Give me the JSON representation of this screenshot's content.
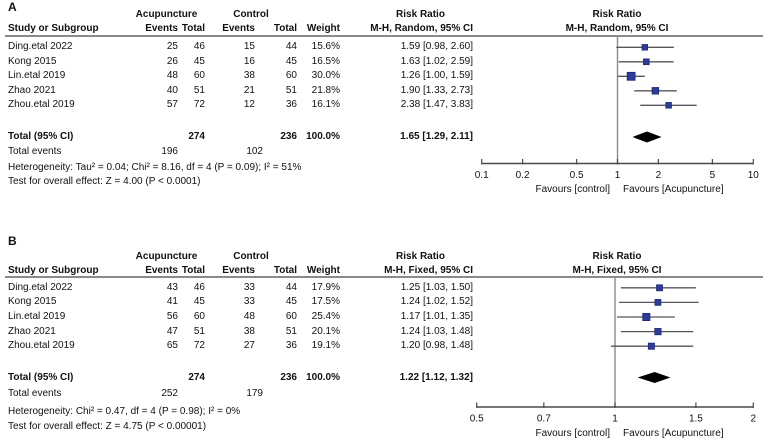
{
  "chart_data": [
    {
      "type": "scatter",
      "subtype": "forest-plot",
      "panel_label": "A",
      "title": "Risk Ratio",
      "method": "M-H, Random, 95% CI",
      "group_labels": {
        "treatment": "Acupuncture",
        "control": "Control"
      },
      "table_columns": [
        "Study or Subgroup",
        "Events",
        "Total",
        "Events",
        "Total",
        "Weight"
      ],
      "studies": [
        {
          "name": "Ding.etal 2022",
          "events_treatment": 25,
          "total_treatment": 46,
          "events_control": 15,
          "total_control": 44,
          "weight_pct": 15.6,
          "weight_label": "15.6%",
          "rr": 1.59,
          "ci_low": 0.98,
          "ci_high": 2.6,
          "rr_label": "1.59 [0.98, 2.60]"
        },
        {
          "name": "Kong 2015",
          "events_treatment": 26,
          "total_treatment": 45,
          "events_control": 16,
          "total_control": 45,
          "weight_pct": 16.5,
          "weight_label": "16.5%",
          "rr": 1.63,
          "ci_low": 1.02,
          "ci_high": 2.59,
          "rr_label": "1.63 [1.02, 2.59]"
        },
        {
          "name": "Lin.etal 2019",
          "events_treatment": 48,
          "total_treatment": 60,
          "events_control": 38,
          "total_control": 60,
          "weight_pct": 30.0,
          "weight_label": "30.0%",
          "rr": 1.26,
          "ci_low": 1.0,
          "ci_high": 1.59,
          "rr_label": "1.26 [1.00, 1.59]"
        },
        {
          "name": "Zhao 2021",
          "events_treatment": 40,
          "total_treatment": 51,
          "events_control": 21,
          "total_control": 51,
          "weight_pct": 21.8,
          "weight_label": "21.8%",
          "rr": 1.9,
          "ci_low": 1.33,
          "ci_high": 2.73,
          "rr_label": "1.90 [1.33, 2.73]"
        },
        {
          "name": "Zhou.etal 2019",
          "events_treatment": 57,
          "total_treatment": 72,
          "events_control": 12,
          "total_control": 36,
          "weight_pct": 16.1,
          "weight_label": "16.1%",
          "rr": 2.38,
          "ci_low": 1.47,
          "ci_high": 3.83,
          "rr_label": "2.38 [1.47, 3.83]"
        }
      ],
      "total": {
        "name": "Total (95% CI)",
        "total_treatment": 274,
        "total_control": 236,
        "weight_label": "100.0%",
        "rr": 1.65,
        "ci_low": 1.29,
        "ci_high": 2.11,
        "rr_label": "1.65 [1.29, 2.11]"
      },
      "total_events": {
        "label": "Total events",
        "treatment": 196,
        "control": 102
      },
      "heterogeneity": "Heterogeneity: Tau² = 0.04; Chi² = 8.16, df = 4 (P = 0.09); I² = 51%",
      "overall_effect": "Test for overall effect: Z = 4.00 (P < 0.0001)",
      "axis": {
        "scale": "log",
        "min": 0.1,
        "max": 10,
        "ticks": [
          0.1,
          0.2,
          0.5,
          1,
          2,
          5,
          10
        ],
        "tick_labels": [
          "0.1",
          "0.2",
          "0.5",
          "1",
          "2",
          "5",
          "10"
        ]
      },
      "favours_left": "Favours [control]",
      "favours_right": "Favours [Acupuncture]",
      "colors": {
        "marker_fill": "#2D3B99",
        "marker_border": "#1C2878",
        "diamond": "#000000",
        "ci_line": "#55565A",
        "axis": "#4A4A4A",
        "guide_line": "#8A8A8A"
      }
    },
    {
      "type": "scatter",
      "subtype": "forest-plot",
      "panel_label": "B",
      "title": "Risk Ratio",
      "method": "M-H, Fixed, 95% CI",
      "group_labels": {
        "treatment": "Acupuncture",
        "control": "Control"
      },
      "table_columns": [
        "Study or Subgroup",
        "Events",
        "Total",
        "Events",
        "Total",
        "Weight"
      ],
      "studies": [
        {
          "name": "Ding.etal 2022",
          "events_treatment": 43,
          "total_treatment": 46,
          "events_control": 33,
          "total_control": 44,
          "weight_pct": 17.9,
          "weight_label": "17.9%",
          "rr": 1.25,
          "ci_low": 1.03,
          "ci_high": 1.5,
          "rr_label": "1.25 [1.03, 1.50]"
        },
        {
          "name": "Kong 2015",
          "events_treatment": 41,
          "total_treatment": 45,
          "events_control": 33,
          "total_control": 45,
          "weight_pct": 17.5,
          "weight_label": "17.5%",
          "rr": 1.24,
          "ci_low": 1.02,
          "ci_high": 1.52,
          "rr_label": "1.24 [1.02, 1.52]"
        },
        {
          "name": "Lin.etal 2019",
          "events_treatment": 56,
          "total_treatment": 60,
          "events_control": 48,
          "total_control": 60,
          "weight_pct": 25.4,
          "weight_label": "25.4%",
          "rr": 1.17,
          "ci_low": 1.01,
          "ci_high": 1.35,
          "rr_label": "1.17 [1.01, 1.35]"
        },
        {
          "name": "Zhao 2021",
          "events_treatment": 47,
          "total_treatment": 51,
          "events_control": 38,
          "total_control": 51,
          "weight_pct": 20.1,
          "weight_label": "20.1%",
          "rr": 1.24,
          "ci_low": 1.03,
          "ci_high": 1.48,
          "rr_label": "1.24 [1.03, 1.48]"
        },
        {
          "name": "Zhou.etal 2019",
          "events_treatment": 65,
          "total_treatment": 72,
          "events_control": 27,
          "total_control": 36,
          "weight_pct": 19.1,
          "weight_label": "19.1%",
          "rr": 1.2,
          "ci_low": 0.98,
          "ci_high": 1.48,
          "rr_label": "1.20 [0.98, 1.48]"
        }
      ],
      "total": {
        "name": "Total (95% CI)",
        "total_treatment": 274,
        "total_control": 236,
        "weight_label": "100.0%",
        "rr": 1.22,
        "ci_low": 1.12,
        "ci_high": 1.32,
        "rr_label": "1.22 [1.12, 1.32]"
      },
      "total_events": {
        "label": "Total events",
        "treatment": 252,
        "control": 179
      },
      "heterogeneity": "Heterogeneity: Chi² = 0.47, df = 4 (P = 0.98); I² = 0%",
      "overall_effect": "Test for overall effect: Z = 4.75 (P < 0.00001)",
      "axis": {
        "scale": "log",
        "min": 0.5,
        "max": 2,
        "ticks": [
          0.5,
          0.7,
          1,
          1.5,
          2
        ],
        "tick_labels": [
          "0.5",
          "0.7",
          "1",
          "1.5",
          "2"
        ]
      },
      "favours_left": "Favours [control]",
      "favours_right": "Favours [Acupuncture]",
      "colors": {
        "marker_fill": "#2D3B99",
        "marker_border": "#1C2878",
        "diamond": "#000000",
        "ci_line": "#55565A",
        "axis": "#4A4A4A",
        "guide_line": "#8A8A8A"
      }
    }
  ]
}
